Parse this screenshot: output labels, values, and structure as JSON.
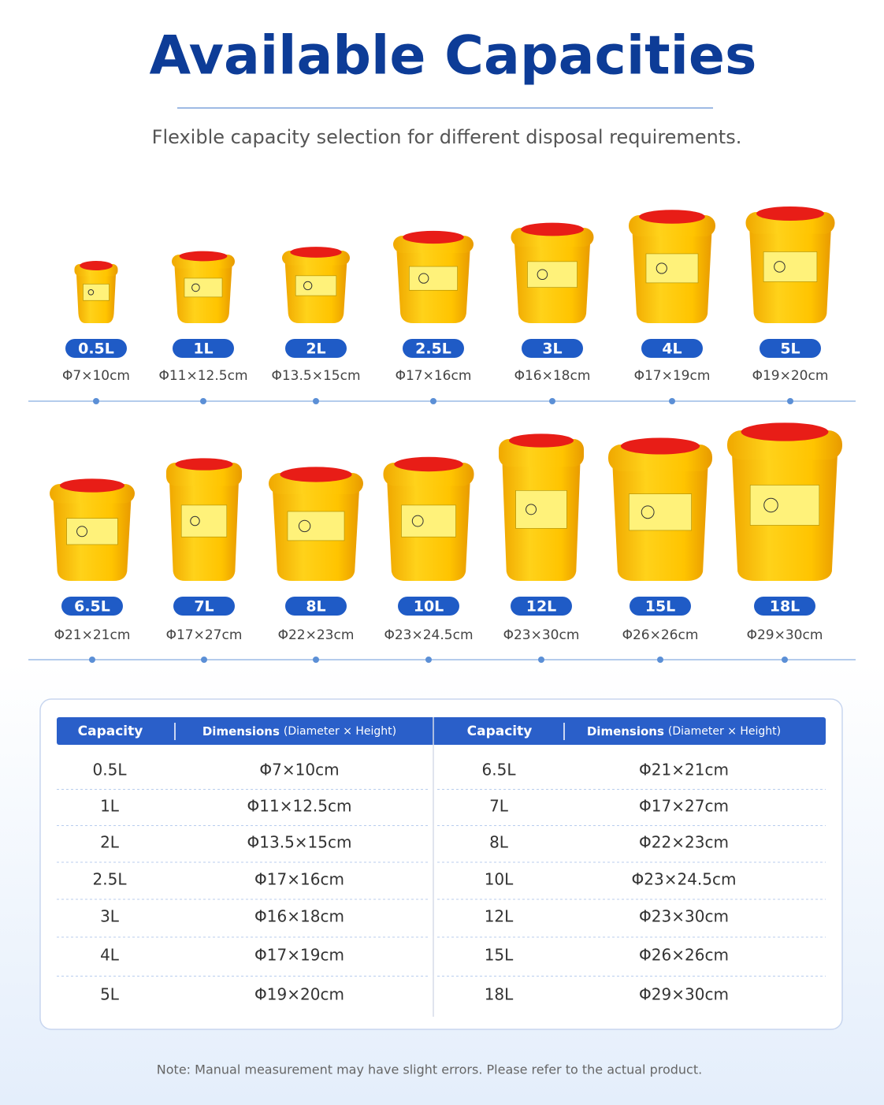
{
  "header": {
    "title": "Available Capacities",
    "subtitle": "Flexible capacity selection for different disposal requirements."
  },
  "products": [
    [
      {
        "capacity": "0.5L",
        "dimensions": "Φ7×10cm"
      },
      {
        "capacity": "1L",
        "dimensions": "Φ11×12.5cm"
      },
      {
        "capacity": "2L",
        "dimensions": "Φ13.5×15cm"
      },
      {
        "capacity": "2.5L",
        "dimensions": "Φ17×16cm"
      },
      {
        "capacity": "3L",
        "dimensions": "Φ16×18cm"
      },
      {
        "capacity": "4L",
        "dimensions": "Φ17×19cm"
      },
      {
        "capacity": "5L",
        "dimensions": "Φ19×20cm"
      }
    ],
    [
      {
        "capacity": "6.5L",
        "dimensions": "Φ21×21cm"
      },
      {
        "capacity": "7L",
        "dimensions": "Φ17×27cm"
      },
      {
        "capacity": "8L",
        "dimensions": "Φ22×23cm"
      },
      {
        "capacity": "10L",
        "dimensions": "Φ23×24.5cm"
      },
      {
        "capacity": "12L",
        "dimensions": "Φ23×30cm"
      },
      {
        "capacity": "15L",
        "dimensions": "Φ26×26cm"
      },
      {
        "capacity": "18L",
        "dimensions": "Φ29×30cm"
      }
    ]
  ],
  "table": {
    "headers": [
      {
        "label": "Capacity"
      },
      {
        "label": "Dimensions",
        "note": "(Diameter × Height)"
      },
      {
        "label": "Capacity"
      },
      {
        "label": "Dimensions",
        "note": "(Diameter × Height)"
      }
    ],
    "rows": [
      [
        "0.5L",
        "Φ7×10cm",
        "6.5L",
        "Φ21×21cm"
      ],
      [
        "1L",
        "Φ11×12.5cm",
        "7L",
        "Φ17×27cm"
      ],
      [
        "2L",
        "Φ13.5×15cm",
        "8L",
        "Φ22×23cm"
      ],
      [
        "2.5L",
        "Φ17×16cm",
        "10L",
        "Φ23×24.5cm"
      ],
      [
        "3L",
        "Φ16×18cm",
        "12L",
        "Φ23×30cm"
      ],
      [
        "4L",
        "Φ17×19cm",
        "15L",
        "Φ26×26cm"
      ],
      [
        "5L",
        "Φ19×20cm",
        "18L",
        "Φ29×30cm"
      ]
    ]
  },
  "note": "Note: Manual measurement may have slight errors. Please refer to the actual product."
}
